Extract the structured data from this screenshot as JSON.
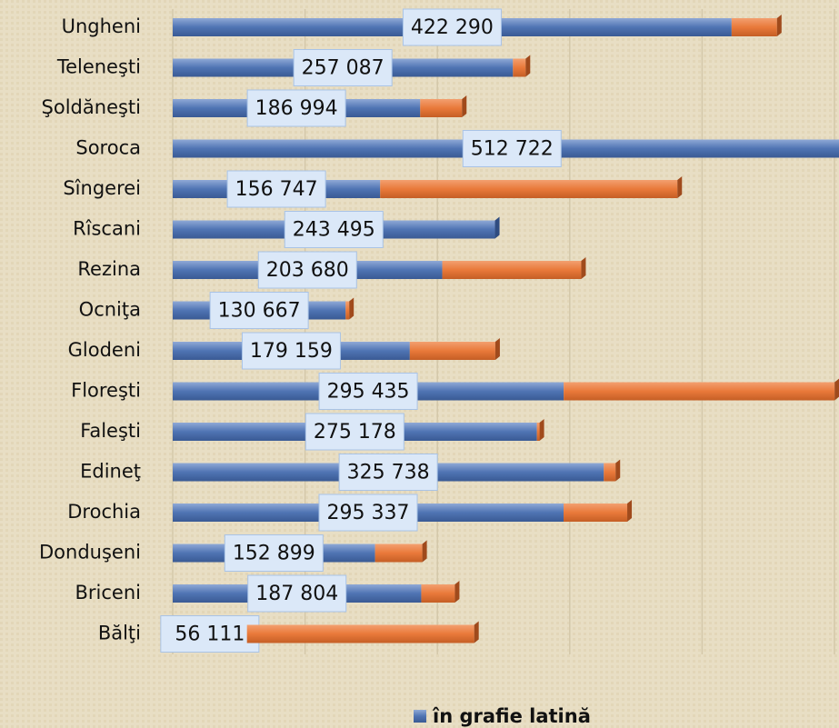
{
  "chart_data": {
    "type": "bar",
    "orientation": "horizontal",
    "stacked": true,
    "categories": [
      "Ungheni",
      "Teleneşti",
      "Şoldăneşti",
      "Soroca",
      "Sîngerei",
      "Rîscani",
      "Rezina",
      "Ocniţa",
      "Glodeni",
      "Floreşti",
      "Faleşti",
      "Edineţ",
      "Drochia",
      "Donduşeni",
      "Briceni",
      "Bălţi"
    ],
    "series": [
      {
        "name": "în grafie latină",
        "color": "#4f74b3",
        "values": [
          422290,
          257087,
          186994,
          512722,
          156747,
          243495,
          203680,
          130667,
          179159,
          295435,
          275178,
          325738,
          295337,
          152899,
          187804,
          56111
        ],
        "value_labels": [
          "422 290",
          "257 087",
          "186 994",
          "512 722",
          "156 747",
          "243 495",
          "203 680",
          "130 667",
          "179 159",
          "295 435",
          "275 178",
          "325 738",
          "295 337",
          "152 899",
          "187 804",
          "56 111"
        ]
      },
      {
        "color": "#e9793a",
        "values": [
          34300,
          9600,
          31600,
          0,
          224600,
          0,
          105000,
          2700,
          64600,
          204700,
          2000,
          8900,
          48100,
          35700,
          25400,
          171700
        ]
      }
    ],
    "xlim": [
      0,
      500000
    ],
    "xticks": [
      0,
      100000,
      200000,
      300000,
      400000,
      500000
    ],
    "grid": true,
    "legend": "bottom"
  }
}
